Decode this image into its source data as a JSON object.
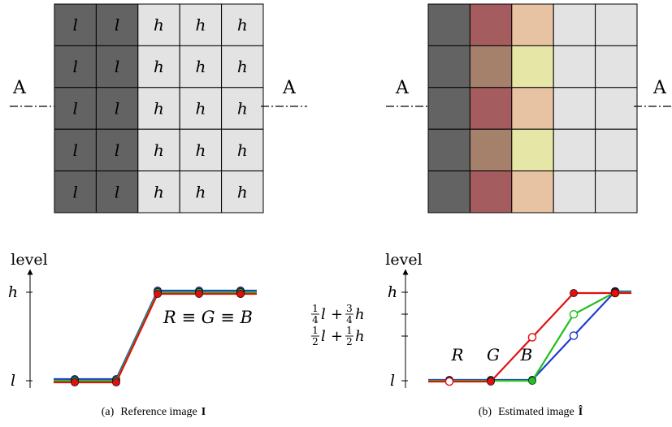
{
  "panel_a": {
    "grid_cells": [
      [
        "l",
        "l",
        "h",
        "h",
        "h"
      ],
      [
        "l",
        "l",
        "h",
        "h",
        "h"
      ],
      [
        "l",
        "l",
        "h",
        "h",
        "h"
      ],
      [
        "l",
        "l",
        "h",
        "h",
        "h"
      ],
      [
        "l",
        "l",
        "h",
        "h",
        "h"
      ]
    ],
    "section_label_left": "A",
    "section_label_right": "A",
    "plot": {
      "ylabel": "level",
      "ytick_high": "h",
      "ytick_low": "l",
      "annotation": "R ≡ G ≡ B",
      "levels": {
        "l": 0,
        "h": 1
      },
      "series": [
        {
          "color": "#1f3fcf",
          "values": [
            0,
            0,
            1,
            1,
            1,
            1
          ]
        },
        {
          "color": "#22c022",
          "values": [
            0,
            0,
            1,
            1,
            1,
            1
          ]
        },
        {
          "color": "#e01010",
          "values": [
            0,
            0,
            1,
            1,
            1,
            1
          ]
        }
      ]
    },
    "caption_prefix": "(a)",
    "caption_text": "Reference image",
    "caption_symbol": "I"
  },
  "panel_b": {
    "grid_colors": [
      [
        "#636363",
        "#a45c5f",
        "#e8c3a3",
        "#e3e3e3",
        "#e3e3e3"
      ],
      [
        "#636363",
        "#a5806a",
        "#e6e6a6",
        "#e3e3e3",
        "#e3e3e3"
      ],
      [
        "#636363",
        "#a45c5f",
        "#e8c3a3",
        "#e3e3e3",
        "#e3e3e3"
      ],
      [
        "#636363",
        "#a5806a",
        "#e6e6a6",
        "#e3e3e3",
        "#e3e3e3"
      ],
      [
        "#636363",
        "#a45c5f",
        "#e8c3a3",
        "#e3e3e3",
        "#e3e3e3"
      ]
    ],
    "section_label_left": "A",
    "section_label_right": "A",
    "plot": {
      "ylabel": "level",
      "ytick_high": "h",
      "ytick_low": "l",
      "ytick_q3_a": "1/4 l + 3/4 h",
      "ytick_half_a": "1/2 l + 1/2 h",
      "label_r": "R",
      "label_g": "G",
      "label_b": "B",
      "levels": {
        "l": 0,
        "half": 0.5,
        "three_quarter": 0.75,
        "h": 1
      },
      "series": [
        {
          "name": "B",
          "color": "#1f3fcf",
          "values": [
            0,
            0,
            0,
            0.5,
            1,
            1
          ]
        },
        {
          "name": "G",
          "color": "#22c022",
          "values": [
            0,
            0,
            0,
            0.75,
            1,
            1
          ]
        },
        {
          "name": "R",
          "color": "#e01010",
          "values": [
            0,
            0,
            0.5,
            1,
            1,
            1
          ]
        }
      ]
    },
    "caption_prefix": "(b)",
    "caption_text": "Estimated image",
    "caption_symbol": "Î"
  },
  "colors": {
    "dark": "#636363",
    "light": "#e3e3e3"
  }
}
